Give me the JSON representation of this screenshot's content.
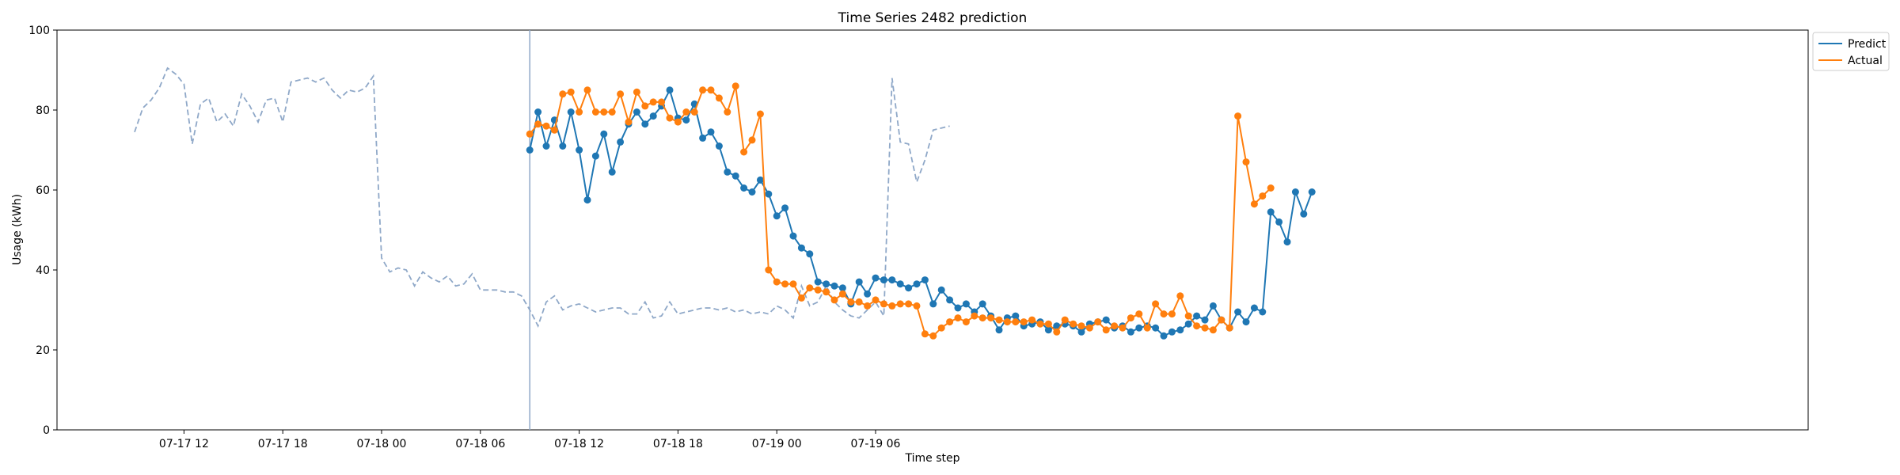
{
  "chart_data": {
    "type": "line",
    "title": "Time Series 2482 prediction",
    "xlabel": "Time step",
    "ylabel": "Usage (kWh)",
    "ylim": [
      0,
      100
    ],
    "yticks": [
      "0",
      "20",
      "40",
      "60",
      "80",
      "100"
    ],
    "x_start": "07-17 09:00",
    "x_step": "30min",
    "xticks": [
      {
        "label": "07-17 12",
        "index": 6
      },
      {
        "label": "07-17 18",
        "index": 18
      },
      {
        "label": "07-18 00",
        "index": 30
      },
      {
        "label": "07-18 06",
        "index": 42
      },
      {
        "label": "07-18 12",
        "index": 54
      },
      {
        "label": "07-18 18",
        "index": 66
      },
      {
        "label": "07-19 00",
        "index": 78
      },
      {
        "label": "07-19 06",
        "index": 90
      }
    ],
    "forecast_start_index": 48,
    "legend_position": "top-right",
    "history": {
      "style": "dashed",
      "color": "#8fa8c8",
      "values": [
        74.5,
        80.5,
        82.5,
        85.5,
        90.5,
        89,
        86.5,
        71.5,
        81.5,
        83,
        77,
        79,
        76,
        84,
        81,
        77,
        82.5,
        83,
        77,
        87,
        87.5,
        88,
        87,
        88,
        85,
        83,
        85,
        84.5,
        85.5,
        88.5,
        43,
        39.5,
        40.5,
        40,
        36,
        39.5,
        38,
        37,
        38.5,
        36,
        36.5,
        39,
        35,
        35,
        35,
        34.5,
        34.5,
        33.5,
        30,
        26,
        32,
        33.5,
        30,
        31,
        31.5,
        30.5,
        29.5,
        30,
        30.5,
        30.5,
        29,
        29,
        32,
        28,
        28.5,
        32,
        29,
        29.5,
        30,
        30.5,
        30.5,
        30,
        30.5,
        29.5,
        30,
        29,
        29.5,
        29,
        31,
        30,
        28,
        36,
        31,
        32,
        36,
        32,
        30,
        28.5,
        28,
        30,
        32,
        28.5,
        88,
        72,
        71.5,
        62,
        67.5,
        75,
        75.5,
        76
      ]
    },
    "series": [
      {
        "name": "Predict",
        "color": "#1f77b4",
        "values": [
          70,
          79.5,
          71,
          77.5,
          71,
          79.5,
          70,
          57.5,
          68.5,
          74,
          64.5,
          72,
          76.5,
          79.5,
          76.5,
          78.5,
          81,
          85,
          78,
          77.5,
          81.5,
          73,
          74.5,
          71,
          64.5,
          63.5,
          60.5,
          59.5,
          62.5,
          59,
          53.5,
          55.5,
          48.5,
          45.5,
          44,
          37,
          36.5,
          36,
          35.5,
          31.5,
          37,
          34,
          38,
          37.5,
          37.5,
          36.5,
          35.5,
          36.5,
          37.5,
          31.5,
          35,
          32.5,
          30.5,
          31.5,
          29.5,
          31.5,
          28.5,
          25,
          28,
          28.5,
          26,
          26.5,
          27,
          25,
          26,
          26.5,
          26,
          24.5,
          26.5,
          27,
          27.5,
          25.5,
          26,
          24.5,
          25.5,
          26,
          25.5,
          23.5,
          24.5,
          25,
          26.5,
          28.5,
          27.5,
          31,
          27.5,
          25.5,
          29.5,
          27,
          30.5,
          29.5,
          54.5,
          52,
          47,
          59.5,
          54,
          59.5
        ]
      },
      {
        "name": "Actual",
        "color": "#ff7f0e",
        "values": [
          74,
          76.5,
          76,
          75,
          84,
          84.5,
          79.5,
          85,
          79.5,
          79.5,
          79.5,
          84,
          77,
          84.5,
          81,
          82,
          82,
          78,
          77,
          79.5,
          79.5,
          85,
          85,
          83,
          79.5,
          86,
          69.5,
          72.5,
          79,
          40,
          37,
          36.5,
          36.5,
          33,
          35.5,
          35,
          34.5,
          32.5,
          34,
          32,
          32,
          31,
          32.5,
          31.5,
          31,
          31.5,
          31.5,
          31,
          24,
          23.5,
          25.5,
          27,
          28,
          27,
          28.5,
          28,
          28,
          27.5,
          27,
          27,
          27,
          27.5,
          26.5,
          26.5,
          24.5,
          27.5,
          26.5,
          26,
          25.5,
          27,
          25,
          26,
          25.5,
          28,
          29,
          25.5,
          31.5,
          29,
          29,
          33.5,
          28.5,
          26,
          25.5,
          25,
          27.5,
          25.5,
          78.5,
          67,
          56.5,
          58.5,
          60.5
        ]
      }
    ]
  }
}
